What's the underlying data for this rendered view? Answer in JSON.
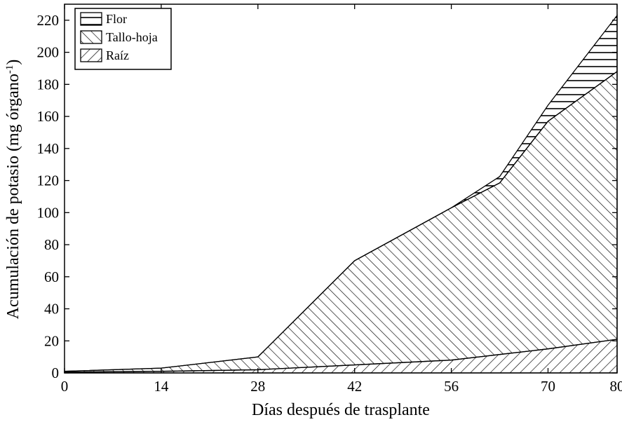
{
  "chart_data": {
    "type": "area",
    "stacked": true,
    "xlabel": "Días después de trasplante",
    "ylabel_main": "Acumulación de potasio (mg órgano",
    "ylabel_sup": "-1",
    "ylabel_close": ")",
    "xlim": [
      0,
      80
    ],
    "ylim": [
      0,
      230
    ],
    "x_ticks": [
      0,
      14,
      28,
      42,
      56,
      70,
      80
    ],
    "y_ticks": [
      0,
      20,
      40,
      60,
      80,
      100,
      120,
      140,
      160,
      180,
      200,
      220
    ],
    "legend_position": "top-left",
    "series": [
      {
        "name": "Raíz",
        "pattern": "diagonal-forward",
        "x": [
          0,
          14,
          28,
          42,
          56,
          70,
          80
        ],
        "values": [
          0.5,
          1,
          2,
          5,
          8,
          15,
          21
        ]
      },
      {
        "name": "Tallo-hoja",
        "pattern": "diagonal-backward",
        "x": [
          0,
          14,
          28,
          42,
          56,
          63,
          70,
          80
        ],
        "values": [
          0.5,
          2,
          8,
          65,
          95,
          107,
          142,
          167
        ]
      },
      {
        "name": "Flor",
        "pattern": "horizontal",
        "x": [
          56,
          63,
          70,
          80
        ],
        "values": [
          0,
          4,
          10,
          35
        ]
      }
    ]
  }
}
